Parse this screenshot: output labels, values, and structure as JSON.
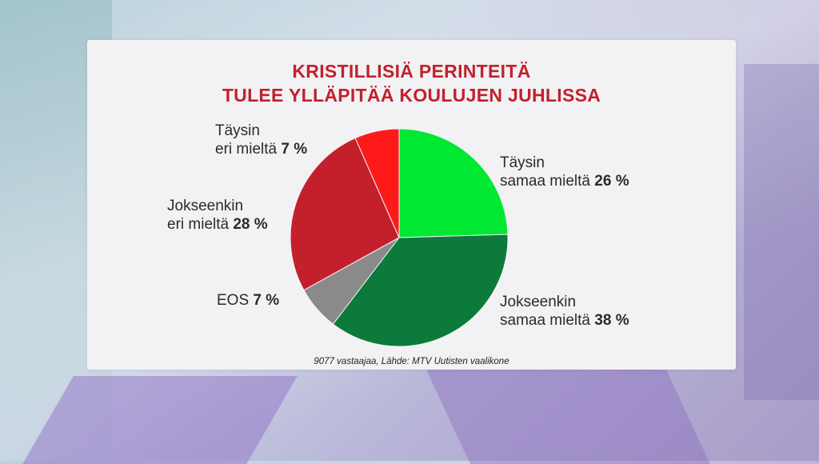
{
  "chart_data": {
    "type": "pie",
    "title_line1": "KRISTILLISIÄ PERINTEITÄ",
    "title_line2": "TULEE YLLÄPITÄÄ KOULUJEN JUHLISSA",
    "source": "9077 vastaajaa, Lähde: MTV Uutisten vaalikone",
    "slices": [
      {
        "line1": "Täysin",
        "line2": "samaa mieltä",
        "value": 26,
        "value_text": "26 %",
        "color": "#00e832"
      },
      {
        "line1": "Jokseenkin",
        "line2": "samaa mieltä",
        "value": 38,
        "value_text": "38 %",
        "color": "#0b7a3b"
      },
      {
        "line1": "",
        "line2": "EOS",
        "value": 7,
        "value_text": "7 %",
        "color": "#8a8a8a"
      },
      {
        "line1": "Jokseenkin",
        "line2": "eri mieltä",
        "value": 28,
        "value_text": "28 %",
        "color": "#c4202b"
      },
      {
        "line1": "Täysin",
        "line2": "eri mieltä",
        "value": 7,
        "value_text": "7 %",
        "color": "#ff1a1a"
      }
    ]
  }
}
